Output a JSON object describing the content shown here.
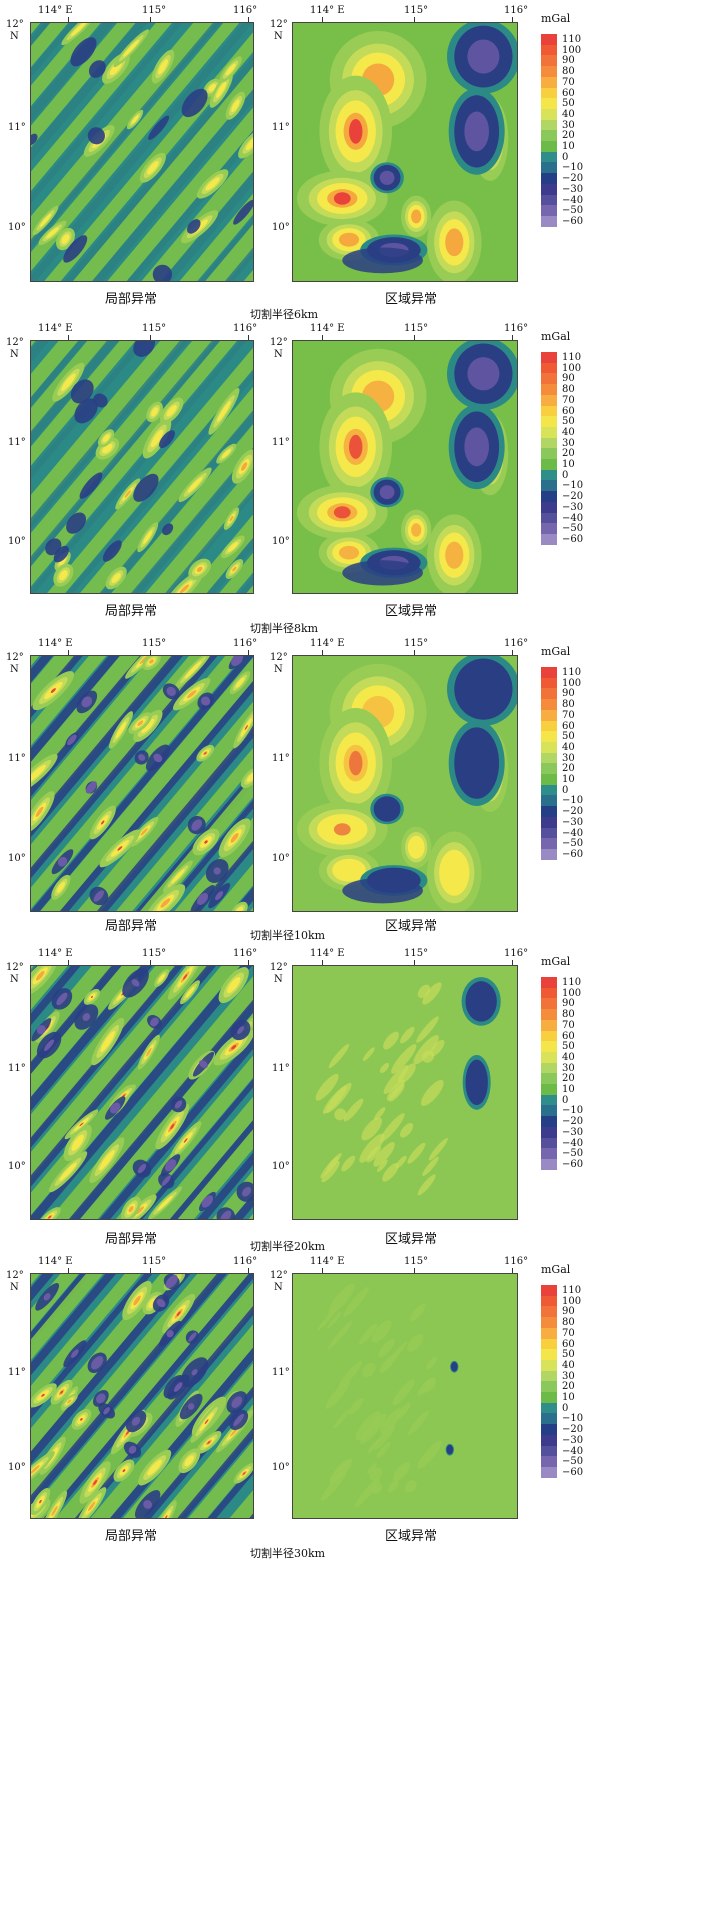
{
  "units": "mGal",
  "labels": {
    "local": "局部异常",
    "regional": "区域异常",
    "lon_114": "114° E",
    "lon_115": "115°",
    "lon_116": "116°",
    "lat_12": "12°",
    "lat_N": "N",
    "lat_11": "11°",
    "lat_10": "10°"
  },
  "legend_levels": [
    "110",
    "100",
    "90",
    "80",
    "70",
    "60",
    "50",
    "40",
    "30",
    "20",
    "10",
    "0",
    "−10",
    "−20",
    "−30",
    "−40",
    "−50",
    "−60"
  ],
  "legend_colors": [
    "#e8423a",
    "#ef5a35",
    "#f2733a",
    "#f48c3c",
    "#f7ad3f",
    "#f8cf3f",
    "#f4e64a",
    "#d8e35a",
    "#b2d664",
    "#8ac85b",
    "#6cbb48",
    "#2f8e8a",
    "#2a6f8b",
    "#253f86",
    "#3d3b8b",
    "#54509b",
    "#7666ad",
    "#9a8ac3"
  ],
  "panels": [
    {
      "cut_label": "切割半径6km"
    },
    {
      "cut_label": "切割半径8km"
    },
    {
      "cut_label": "切割半径10km"
    },
    {
      "cut_label": "切割半径20km"
    },
    {
      "cut_label": "切割半径30km"
    }
  ]
}
